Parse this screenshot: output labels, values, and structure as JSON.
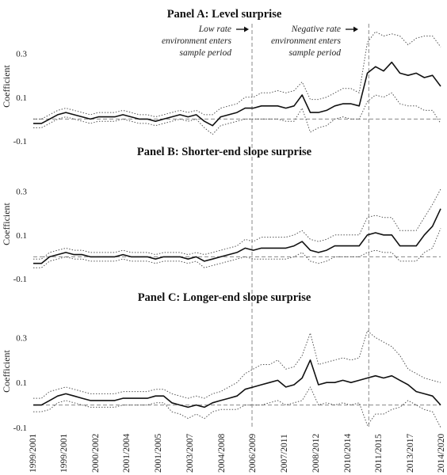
{
  "chart_data": [
    {
      "type": "line",
      "title": "Panel A: Level surprise",
      "ylabel": "Coefficient",
      "ylim": [
        -0.1,
        0.4
      ],
      "yticks": [
        -0.1,
        0.1,
        0.3
      ],
      "series": [
        {
          "role": "estimate",
          "values": [
            -0.02,
            -0.02,
            0.0,
            0.02,
            0.03,
            0.02,
            0.01,
            0.0,
            0.01,
            0.01,
            0.01,
            0.02,
            0.01,
            0.0,
            0.0,
            -0.01,
            0.0,
            0.01,
            0.02,
            0.01,
            0.02,
            -0.01,
            -0.03,
            0.01,
            0.02,
            0.03,
            0.05,
            0.05,
            0.06,
            0.06,
            0.06,
            0.05,
            0.06,
            0.11,
            0.03,
            0.03,
            0.04,
            0.06,
            0.07,
            0.07,
            0.06,
            0.21,
            0.24,
            0.22,
            0.26,
            0.21,
            0.2,
            0.21,
            0.19,
            0.2,
            0.15
          ]
        },
        {
          "role": "upper",
          "values": [
            0.0,
            0.0,
            0.02,
            0.04,
            0.05,
            0.04,
            0.03,
            0.02,
            0.03,
            0.03,
            0.03,
            0.04,
            0.03,
            0.02,
            0.02,
            0.01,
            0.02,
            0.03,
            0.04,
            0.03,
            0.04,
            0.02,
            0.02,
            0.05,
            0.06,
            0.07,
            0.1,
            0.1,
            0.12,
            0.12,
            0.13,
            0.12,
            0.13,
            0.17,
            0.09,
            0.09,
            0.1,
            0.12,
            0.14,
            0.14,
            0.12,
            0.35,
            0.4,
            0.38,
            0.39,
            0.38,
            0.34,
            0.37,
            0.38,
            0.38,
            0.33
          ]
        },
        {
          "role": "lower",
          "values": [
            -0.04,
            -0.04,
            -0.02,
            0.0,
            0.01,
            0.0,
            -0.01,
            -0.02,
            -0.01,
            -0.01,
            -0.01,
            0.0,
            -0.01,
            -0.02,
            -0.02,
            -0.03,
            -0.02,
            -0.01,
            0.0,
            -0.01,
            0.0,
            -0.04,
            -0.07,
            -0.03,
            -0.02,
            -0.01,
            0.0,
            0.0,
            0.0,
            0.0,
            0.0,
            -0.01,
            -0.01,
            0.05,
            -0.06,
            -0.04,
            -0.03,
            0.0,
            0.01,
            0.0,
            0.0,
            0.08,
            0.11,
            0.1,
            0.12,
            0.07,
            0.06,
            0.06,
            0.04,
            0.04,
            -0.02
          ]
        }
      ],
      "annotations": [
        {
          "lines": [
            "Low rate",
            "environment enters",
            "sample period"
          ]
        },
        {
          "lines": [
            "Negative rate",
            "environment enters",
            "sample period"
          ]
        }
      ]
    },
    {
      "type": "line",
      "title": "Panel B: Shorter-end slope surprise",
      "ylabel": "Coefficient",
      "ylim": [
        -0.1,
        0.4
      ],
      "yticks": [
        -0.1,
        0.1,
        0.3
      ],
      "series": [
        {
          "role": "estimate",
          "values": [
            -0.03,
            -0.03,
            0.0,
            0.01,
            0.02,
            0.01,
            0.01,
            0.0,
            0.0,
            0.0,
            0.0,
            0.01,
            0.0,
            0.0,
            0.0,
            -0.01,
            0.0,
            0.0,
            0.0,
            -0.01,
            0.0,
            -0.02,
            -0.01,
            0.0,
            0.01,
            0.02,
            0.04,
            0.03,
            0.04,
            0.04,
            0.04,
            0.04,
            0.05,
            0.07,
            0.03,
            0.02,
            0.03,
            0.05,
            0.05,
            0.05,
            0.05,
            0.1,
            0.11,
            0.1,
            0.1,
            0.05,
            0.05,
            0.05,
            0.1,
            0.14,
            0.22
          ]
        },
        {
          "role": "upper",
          "values": [
            -0.01,
            -0.01,
            0.02,
            0.03,
            0.04,
            0.03,
            0.03,
            0.02,
            0.02,
            0.02,
            0.02,
            0.03,
            0.02,
            0.02,
            0.02,
            0.01,
            0.02,
            0.02,
            0.02,
            0.01,
            0.02,
            0.01,
            0.02,
            0.03,
            0.04,
            0.05,
            0.08,
            0.07,
            0.09,
            0.09,
            0.09,
            0.09,
            0.1,
            0.12,
            0.08,
            0.07,
            0.08,
            0.1,
            0.1,
            0.1,
            0.1,
            0.18,
            0.19,
            0.18,
            0.18,
            0.12,
            0.12,
            0.12,
            0.18,
            0.24,
            0.31
          ]
        },
        {
          "role": "lower",
          "values": [
            -0.05,
            -0.05,
            -0.02,
            -0.01,
            0.0,
            -0.01,
            -0.01,
            -0.02,
            -0.02,
            -0.02,
            -0.02,
            -0.01,
            -0.02,
            -0.02,
            -0.02,
            -0.03,
            -0.02,
            -0.02,
            -0.02,
            -0.03,
            -0.02,
            -0.05,
            -0.04,
            -0.03,
            -0.02,
            -0.01,
            0.0,
            -0.01,
            -0.01,
            -0.01,
            -0.01,
            -0.01,
            0.0,
            0.02,
            -0.02,
            -0.03,
            -0.02,
            0.0,
            0.0,
            0.0,
            0.0,
            0.02,
            0.03,
            0.02,
            0.02,
            -0.02,
            -0.02,
            -0.02,
            0.02,
            0.04,
            0.13
          ]
        }
      ]
    },
    {
      "type": "line",
      "title": "Panel C: Longer-end slope surprise",
      "ylabel": "Coefficient",
      "ylim": [
        -0.1,
        0.4
      ],
      "yticks": [
        -0.1,
        0.1,
        0.3
      ],
      "series": [
        {
          "role": "estimate",
          "values": [
            0.0,
            0.0,
            0.02,
            0.04,
            0.05,
            0.04,
            0.03,
            0.02,
            0.02,
            0.02,
            0.02,
            0.03,
            0.03,
            0.03,
            0.03,
            0.04,
            0.04,
            0.01,
            0.0,
            -0.01,
            0.0,
            -0.01,
            0.01,
            0.02,
            0.03,
            0.04,
            0.07,
            0.08,
            0.09,
            0.1,
            0.11,
            0.08,
            0.09,
            0.12,
            0.2,
            0.09,
            0.1,
            0.1,
            0.11,
            0.1,
            0.11,
            0.12,
            0.13,
            0.12,
            0.13,
            0.11,
            0.09,
            0.06,
            0.05,
            0.04,
            0.0
          ]
        },
        {
          "role": "upper",
          "values": [
            0.03,
            0.03,
            0.06,
            0.07,
            0.08,
            0.07,
            0.06,
            0.05,
            0.05,
            0.05,
            0.05,
            0.06,
            0.06,
            0.06,
            0.06,
            0.07,
            0.07,
            0.05,
            0.04,
            0.03,
            0.04,
            0.03,
            0.05,
            0.06,
            0.08,
            0.1,
            0.14,
            0.16,
            0.18,
            0.18,
            0.2,
            0.16,
            0.17,
            0.22,
            0.32,
            0.18,
            0.19,
            0.2,
            0.21,
            0.2,
            0.21,
            0.33,
            0.3,
            0.28,
            0.26,
            0.22,
            0.16,
            0.14,
            0.12,
            0.11,
            0.1
          ]
        },
        {
          "role": "lower",
          "values": [
            -0.03,
            -0.03,
            -0.02,
            0.01,
            0.02,
            0.01,
            0.0,
            -0.01,
            -0.01,
            -0.01,
            -0.01,
            0.0,
            0.0,
            0.0,
            0.0,
            0.01,
            0.01,
            -0.03,
            -0.04,
            -0.06,
            -0.04,
            -0.06,
            -0.03,
            -0.02,
            -0.02,
            -0.02,
            0.0,
            0.0,
            0.0,
            0.01,
            0.02,
            0.0,
            0.01,
            0.02,
            0.08,
            0.0,
            0.01,
            0.0,
            0.01,
            0.0,
            0.01,
            -0.09,
            -0.04,
            -0.04,
            -0.02,
            -0.01,
            0.02,
            0.0,
            -0.02,
            -0.03,
            -0.1
          ]
        }
      ]
    }
  ],
  "x_axis": {
    "tick_labels": [
      "1999/2001",
      "1999/2001",
      "2000/2002",
      "2001/2004",
      "2001/2005",
      "2003/2007",
      "2004/2008",
      "2006/2009",
      "2007/2011",
      "2008/2012",
      "2010/2014",
      "2011/2015",
      "2013/2017",
      "2014/2020"
    ],
    "vline_ticks": [
      7,
      10.7
    ]
  },
  "colors": {
    "estimate": "#111111",
    "band": "#555555",
    "reference": "#888888",
    "text": "#222222"
  },
  "line_styles": {
    "estimate": "solid",
    "band": "dotted",
    "zero_line": "dashed",
    "event_lines": "dashed"
  }
}
